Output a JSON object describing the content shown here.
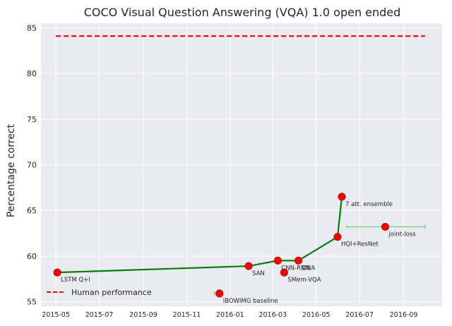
{
  "chart_data": {
    "type": "scatter",
    "title": "COCO Visual Question Answering (VQA) 1.0 open ended",
    "ylabel": "Percentage correct",
    "xlabel": "",
    "ylim": [
      54.5,
      85.5
    ],
    "xlim": [
      "2015-04-10",
      "2016-10-25"
    ],
    "y_ticks": [
      55,
      60,
      65,
      70,
      75,
      80,
      85
    ],
    "x_ticks": [
      "2015-05",
      "2015-07",
      "2015-09",
      "2015-11",
      "2016-01",
      "2016-03",
      "2016-05",
      "2016-07",
      "2016-09"
    ],
    "grid": true,
    "legend_position": "lower-left",
    "human_performance": {
      "name": "Human performance",
      "y": 84.1,
      "x_range": [
        "2015-05-01",
        "2016-10-01"
      ],
      "color": "#ff0000"
    },
    "points": [
      {
        "label": "LSTM Q+I",
        "date": "2015-05-03",
        "y": 58.2
      },
      {
        "label": "iBOWIMG baseline",
        "date": "2015-12-17",
        "y": 55.9
      },
      {
        "label": "SAN",
        "date": "2016-01-27",
        "y": 58.9
      },
      {
        "label": "CNN-RNN",
        "date": "2016-03-08",
        "y": 59.5
      },
      {
        "label": "SMem-VQA",
        "date": "2016-03-17",
        "y": 58.2
      },
      {
        "label": "DNA",
        "date": "2016-04-06",
        "y": 59.5
      },
      {
        "label": "HQI+ResNet",
        "date": "2016-05-31",
        "y": 62.1
      },
      {
        "label": "7 att. ensemble",
        "date": "2016-06-06",
        "y": 66.5
      },
      {
        "label": "joint-loss",
        "date": "2016-08-06",
        "y": 63.2
      }
    ],
    "sota_line": {
      "color": "#008000",
      "path": [
        "LSTM Q+I",
        "SAN",
        "CNN-RNN",
        "DNA",
        "HQI+ResNet",
        "7 att. ensemble"
      ]
    },
    "error_bars": [
      {
        "label": "iBOWIMG baseline",
        "from": "2015-12-10",
        "to": "2015-12-17",
        "y": 55.9
      },
      {
        "label": "joint-loss",
        "from": "2016-06-13",
        "to": "2016-10-01",
        "y": 63.2
      }
    ],
    "colors": {
      "marker": "#ff0000",
      "marker_edge": "#8b2a1a",
      "background": "#eaeaf2",
      "grid": "#ffffff",
      "error_bar": "#66cc66"
    }
  }
}
